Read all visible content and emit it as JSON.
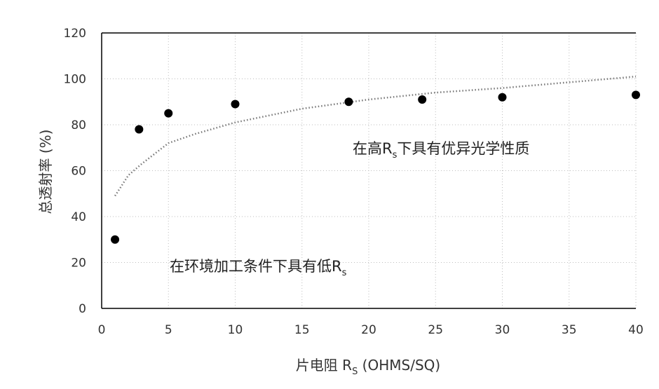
{
  "chart_data": {
    "type": "scatter",
    "x": [
      1,
      2.8,
      5,
      10,
      18.5,
      24,
      30,
      40
    ],
    "y": [
      30,
      78,
      85,
      89,
      90,
      91,
      92,
      93
    ],
    "trendline": {
      "style": "dotted",
      "points": [
        [
          1,
          49
        ],
        [
          2,
          58
        ],
        [
          3,
          63
        ],
        [
          5,
          72
        ],
        [
          7,
          76
        ],
        [
          10,
          81
        ],
        [
          15,
          87
        ],
        [
          20,
          91
        ],
        [
          25,
          94
        ],
        [
          30,
          96
        ],
        [
          35,
          98.5
        ],
        [
          40,
          101
        ]
      ]
    },
    "xlabel_main": "片电阻 R",
    "xlabel_sub": "S",
    "xlabel_tail": " (OHMS/SQ)",
    "ylabel": "总透射率 (%)",
    "xlim": [
      0,
      40
    ],
    "ylim": [
      0,
      120
    ],
    "xticks": [
      0,
      5,
      10,
      15,
      20,
      25,
      30,
      35,
      40
    ],
    "yticks": [
      0,
      20,
      40,
      60,
      80,
      100,
      120
    ],
    "grid": "dotted",
    "annotations": [
      {
        "id": "upper",
        "main": "在高R",
        "sub": "s",
        "tail": "下具有优异光学性质",
        "x": 12,
        "y": 68
      },
      {
        "id": "lower",
        "main": "在环境加工条件下具有低R",
        "sub": "s",
        "tail": "",
        "x": 1,
        "y": 17
      }
    ],
    "colors": {
      "point": "#000000",
      "trend": "#777777",
      "grid": "#bdbdbd",
      "axis": "#000000"
    }
  }
}
